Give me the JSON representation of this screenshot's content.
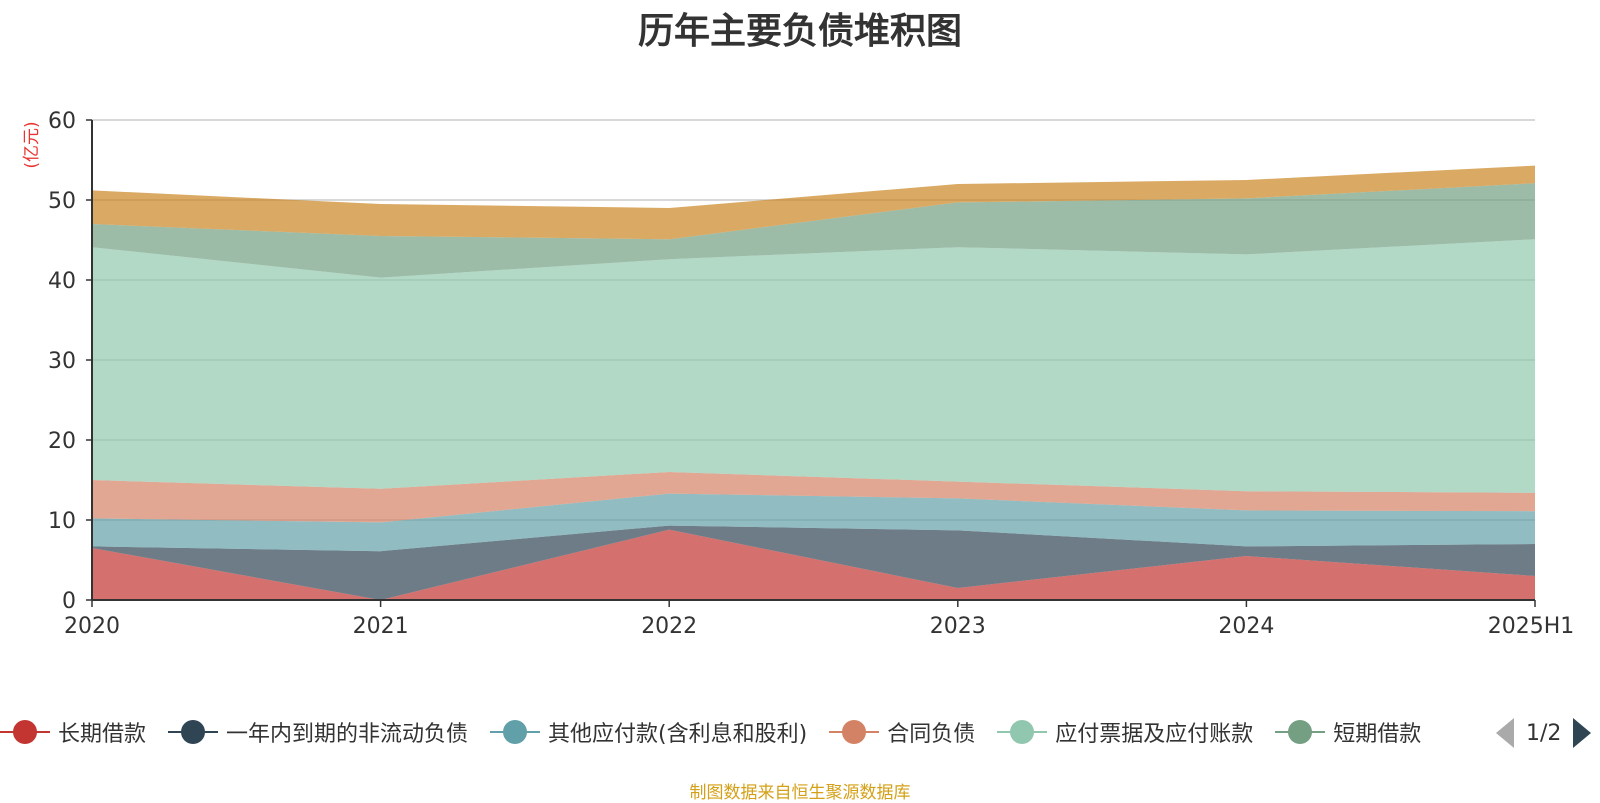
{
  "title": "历年主要负债堆积图",
  "footer": "制图数据来自恒生聚源数据库",
  "pager": "1/2",
  "chart_data": {
    "type": "area",
    "stacked": true,
    "categories": [
      "2020",
      "2021",
      "2022",
      "2023",
      "2024",
      "2025H1"
    ],
    "ylabel": "(亿元)",
    "ylim": [
      0,
      60
    ],
    "yticks": [
      0,
      10,
      20,
      30,
      40,
      50,
      60
    ],
    "grid": true,
    "legend_position": "bottom",
    "series": [
      {
        "name": "长期借款",
        "color": "#c23531",
        "values": [
          6.5,
          0.0,
          8.8,
          1.5,
          5.5,
          3.0
        ]
      },
      {
        "name": "一年内到期的非流动负债",
        "color": "#2f4554",
        "values": [
          0.2,
          6.1,
          0.5,
          7.2,
          1.2,
          4.0
        ]
      },
      {
        "name": "其他应付款(含利息和股利)",
        "color": "#61a0a8",
        "values": [
          3.5,
          3.6,
          4.0,
          4.0,
          4.5,
          4.1
        ]
      },
      {
        "name": "合同负债",
        "color": "#d48265",
        "values": [
          4.8,
          4.2,
          2.7,
          2.1,
          2.4,
          2.3
        ]
      },
      {
        "name": "应付票据及应付账款",
        "color": "#91c7ae",
        "values": [
          29.1,
          26.4,
          26.6,
          29.3,
          29.6,
          31.7
        ]
      },
      {
        "name": "短期借款",
        "color": "#749f83",
        "values": [
          2.9,
          5.2,
          2.5,
          5.6,
          7.0,
          7.0
        ]
      },
      {
        "name": "",
        "color": "#ca8622",
        "values": [
          4.2,
          4.0,
          3.9,
          2.3,
          2.3,
          2.2
        ]
      }
    ]
  }
}
